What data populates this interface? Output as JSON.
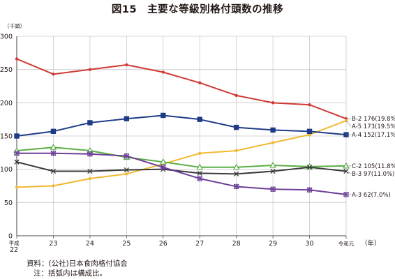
{
  "chart_data": {
    "type": "line",
    "title": "図15　主要な等級別格付頭数の推移",
    "ylabel": "（千頭）",
    "xlabel": "（年）",
    "ylim": [
      0,
      300
    ],
    "yticks": [
      "0",
      "50",
      "100",
      "150",
      "200",
      "250",
      "300"
    ],
    "grid": true,
    "categories": [
      "平成22",
      "23",
      "24",
      "25",
      "26",
      "27",
      "28",
      "29",
      "30",
      "令和元"
    ],
    "series": [
      {
        "name": "B-2",
        "color": "#cf3a36",
        "marker": "none",
        "end_label": "B-2  176(19.8%)",
        "values": [
          266,
          243,
          250,
          257,
          246,
          230,
          211,
          200,
          197,
          176
        ]
      },
      {
        "name": "A-5",
        "color": "#f0b932",
        "marker": "none",
        "end_label": "A-5  173(19.5%)",
        "values": [
          73,
          75,
          86,
          93,
          108,
          124,
          128,
          140,
          152,
          173
        ]
      },
      {
        "name": "A-4",
        "color": "#1e3b87",
        "marker": "square",
        "end_label": "A-4  152(17.1%)",
        "values": [
          150,
          157,
          170,
          176,
          181,
          175,
          163,
          159,
          157,
          152
        ]
      },
      {
        "name": "C-2",
        "color": "#5aad46",
        "marker": "triangle",
        "end_label": "C-2  105(11.8%)",
        "values": [
          128,
          133,
          128,
          118,
          111,
          103,
          103,
          106,
          104,
          105
        ]
      },
      {
        "name": "B-3",
        "color": "#3a3a3a",
        "marker": "x",
        "end_label": "B-3  97(11.0%)",
        "values": [
          111,
          97,
          97,
          99,
          100,
          94,
          93,
          97,
          103,
          97
        ]
      },
      {
        "name": "A-3",
        "color": "#6c3f98",
        "marker": "asterisk",
        "end_label": "A-3  62(7.0%)",
        "values": [
          124,
          124,
          123,
          120,
          103,
          86,
          74,
          70,
          69,
          62
        ]
      }
    ]
  },
  "notes": {
    "source": "資料：(公社)日本食肉格付協会",
    "note": "注：括弧内は構成比。"
  }
}
